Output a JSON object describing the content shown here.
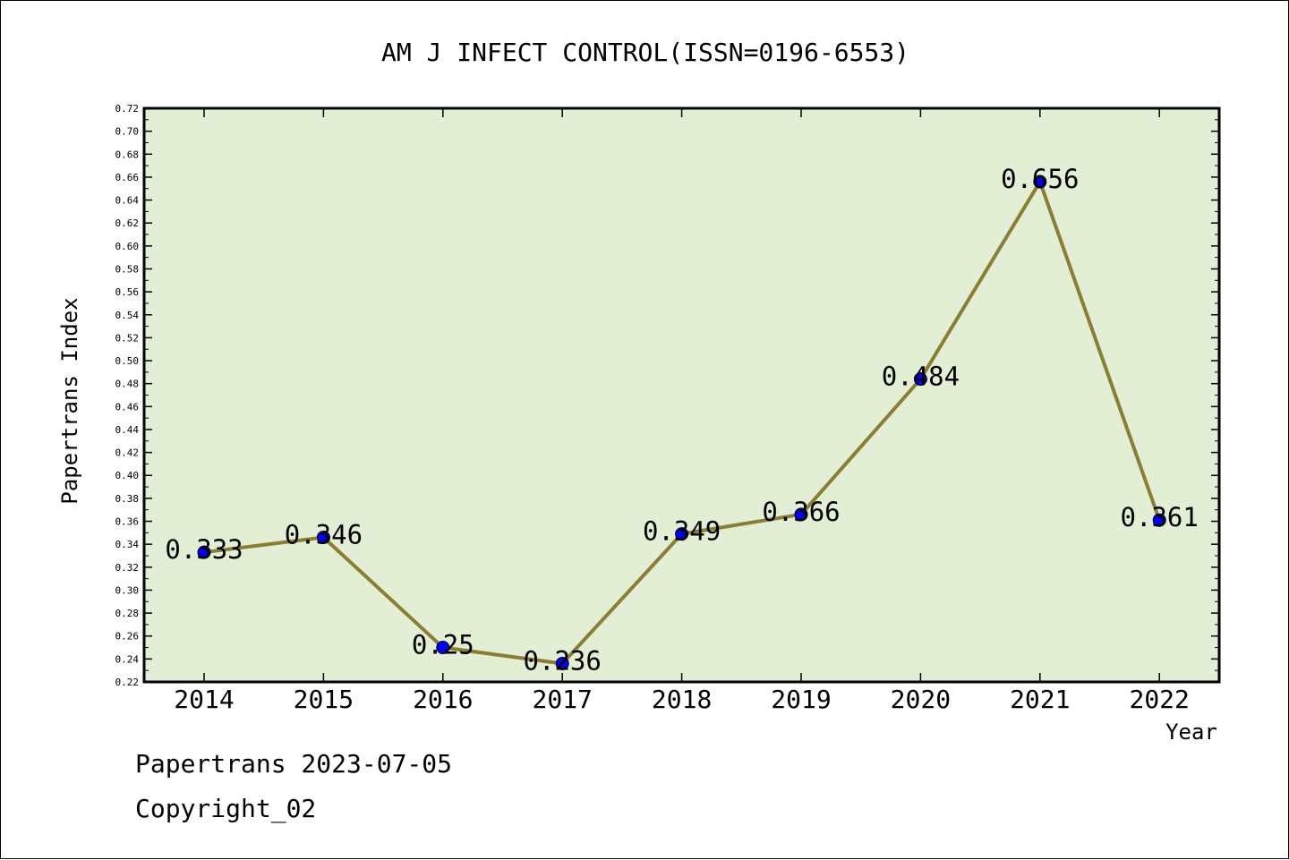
{
  "chart_data": {
    "type": "line",
    "title": "AM J INFECT CONTROL(ISSN=0196-6553)",
    "xlabel": "Year",
    "ylabel": "Papertrans Index",
    "categories": [
      "2014",
      "2015",
      "2016",
      "2017",
      "2018",
      "2019",
      "2020",
      "2021",
      "2022"
    ],
    "values": [
      0.333,
      0.346,
      0.25,
      0.236,
      0.349,
      0.366,
      0.484,
      0.656,
      0.361
    ],
    "data_labels": [
      "0.333",
      "0.346",
      "0.25",
      "0.236",
      "0.349",
      "0.366",
      "0.484",
      "0.656",
      "0.361"
    ],
    "ylim": [
      0.22,
      0.72
    ],
    "yticks": [
      "0.22",
      "0.24",
      "0.26",
      "0.28",
      "0.30",
      "0.32",
      "0.34",
      "0.36",
      "0.38",
      "0.40",
      "0.42",
      "0.44",
      "0.46",
      "0.48",
      "0.50",
      "0.52",
      "0.54",
      "0.56",
      "0.58",
      "0.60",
      "0.62",
      "0.64",
      "0.66",
      "0.68",
      "0.70",
      "0.72"
    ],
    "grid": false,
    "colors": {
      "plot_background": "#e2efd5",
      "line": "#8b7d32",
      "marker": "#0000ff"
    }
  },
  "footer": {
    "line1": "Papertrans 2023-07-05",
    "line2": "Copyright_02"
  }
}
